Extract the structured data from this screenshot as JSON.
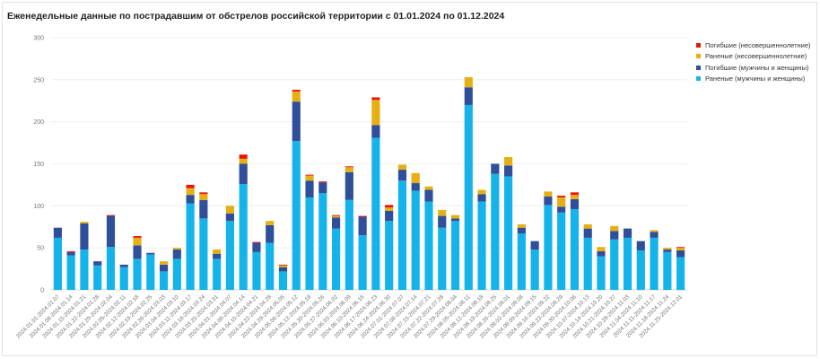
{
  "chart_data": {
    "type": "bar",
    "stacked": true,
    "title": "Еженедельные данные по пострадавшим от обстрелов российской территории с 01.01.2024 по 01.12.2024",
    "xlabel": "",
    "ylabel": "",
    "ylim": [
      0,
      300
    ],
    "yticks": [
      0,
      50,
      100,
      150,
      200,
      250,
      300
    ],
    "grid": true,
    "legend_position": "top-right",
    "categories": [
      "2024.01.01-2024.01.07",
      "2024.01.08-2024.01.14",
      "2024.01.15-2024.01.21",
      "2024.01.22-2024.01.28",
      "2024.01.29-2024.02.04",
      "2024.02.05-2024.02.11",
      "2024.02.12-2024.02.18",
      "2024.02.19-2024.02.25",
      "2024.02.26-2024.03.03",
      "2024.03.04-2024.03.10",
      "2024.03.11-2024.03.17",
      "2024.03.18-2024.03.24",
      "2024.03.25-2024.03.31",
      "2024.04.01-2024.04.07",
      "2024.04.08-2024.04.14",
      "2024.04.15-2024.04.21",
      "2024.04.22-2024.04.28",
      "2024.04.29-2024.05.05",
      "2024.05.06-2024.05.12",
      "2024.05.13-2024.05.19",
      "2024.05.20-2024.05.26",
      "2024.05.27-2024.06.02",
      "2024.06.03-2024.06.09",
      "2024.06.10-2024.06.16",
      "2024.06.17-2024.06.23",
      "2024.06.24-2024.06.30",
      "2024.07.01-2024.07.07",
      "2024.07.08-2024.07.14",
      "2024.07.15-2024.07.21",
      "2024.07.22-2024.07.28",
      "2024.07.29-2024.08.04",
      "2024.08.05-2024.08.11",
      "2024.08.12-2024.08.18",
      "2024.08.19-2024.08.25",
      "2024.08.26-2024.09.01",
      "2024.09.02-2024.09.08",
      "2024.09.09-2024.09.15",
      "2024.09.16-2024.09.22",
      "2024.09.23-2024.09.29",
      "2024.09.30-2024.10.06",
      "2024.10.07-2024.10.13",
      "2024.10.14-2024.10.20",
      "2024.10.21-2024.10.27",
      "2024.10.28-2024.11.03",
      "2024.11.04-2024.11.10",
      "2024.11.11-2024.11.17",
      "2024.11.18-2024.11.24",
      "2024.11.25-2024.12.01"
    ],
    "series": [
      {
        "name": "Раненые (мужчины и женщины)",
        "color": "#14b4ea",
        "values": [
          62,
          41,
          48,
          29,
          51,
          27,
          37,
          42,
          22,
          37,
          103,
          85,
          37,
          82,
          126,
          45,
          56,
          22,
          177,
          110,
          115,
          73,
          107,
          65,
          181,
          82,
          130,
          118,
          105,
          74,
          82,
          220,
          105,
          138,
          135,
          67,
          48,
          101,
          92,
          96,
          62,
          40,
          60,
          62,
          47,
          62,
          45,
          39
        ]
      },
      {
        "name": "Погибшие (мужчины и женщины)",
        "color": "#2f4f9a",
        "values": [
          12,
          4,
          31,
          5,
          37,
          3,
          16,
          2,
          8,
          11,
          10,
          22,
          6,
          9,
          24,
          11,
          21,
          5,
          47,
          20,
          13,
          13,
          33,
          22,
          15,
          12,
          13,
          9,
          14,
          14,
          3,
          21,
          9,
          12,
          13,
          7,
          10,
          10,
          7,
          12,
          11,
          6,
          10,
          11,
          11,
          7,
          3,
          8
        ]
      },
      {
        "name": "Раненые (несовершеннолетние)",
        "color": "#e6b014",
        "values": [
          0,
          0,
          2,
          0,
          0,
          0,
          9,
          0,
          4,
          2,
          8,
          7,
          5,
          9,
          6,
          0,
          5,
          2,
          12,
          6,
          0,
          2,
          6,
          0,
          30,
          4,
          6,
          12,
          4,
          7,
          4,
          12,
          5,
          0,
          10,
          4,
          0,
          6,
          11,
          5,
          5,
          5,
          6,
          0,
          0,
          2,
          2,
          3
        ]
      },
      {
        "name": "Погибшие (несовершеннолетние)",
        "color": "#e8150d",
        "values": [
          0,
          1,
          0,
          0,
          1,
          0,
          2,
          0,
          0,
          0,
          4,
          2,
          0,
          0,
          5,
          1,
          0,
          1,
          2,
          1,
          1,
          1,
          1,
          1,
          3,
          3,
          0,
          0,
          0,
          0,
          0,
          0,
          0,
          0,
          0,
          0,
          0,
          0,
          2,
          3,
          0,
          0,
          0,
          0,
          0,
          0,
          0,
          1
        ]
      }
    ]
  }
}
